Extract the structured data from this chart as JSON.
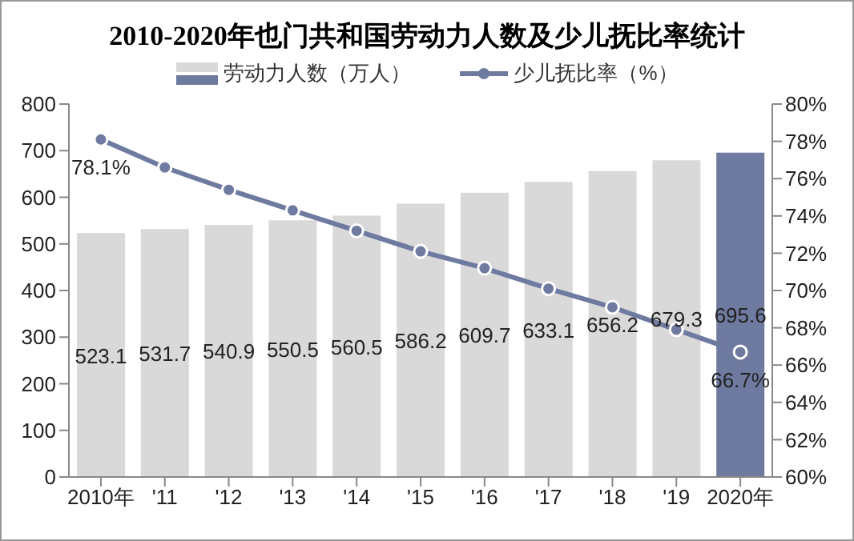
{
  "chart_data": {
    "type": "bar",
    "title": "2010-2020年也门共和国劳动力人数及少儿抚比率统计",
    "categories": [
      "2010年",
      "'11",
      "'12",
      "'13",
      "'14",
      "'15",
      "'16",
      "'17",
      "'18",
      "'19",
      "2020年"
    ],
    "series": [
      {
        "name": "劳动力人数（万人）",
        "colors": [
          "#d9d9d9",
          "#d9d9d9",
          "#d9d9d9",
          "#d9d9d9",
          "#d9d9d9",
          "#d9d9d9",
          "#d9d9d9",
          "#d9d9d9",
          "#d9d9d9",
          "#d9d9d9",
          "#6f7aa0"
        ],
        "color": "#d9d9d9",
        "values": [
          523.1,
          531.7,
          540.9,
          550.5,
          560.5,
          586.2,
          609.7,
          633.1,
          656.2,
          679.3,
          695.6
        ],
        "value_labels": [
          "523.1",
          "531.7",
          "540.9",
          "550.5",
          "560.5",
          "586.2",
          "609.7",
          "633.1",
          "656.2",
          "679.3",
          "695.6"
        ]
      },
      {
        "name": "少儿抚比率（%）",
        "type": "line",
        "axis": "y2",
        "color": "#6f7aa0",
        "marker": "circle",
        "values": [
          78.1,
          76.6,
          75.4,
          74.3,
          73.2,
          72.1,
          71.2,
          70.1,
          69.1,
          67.9,
          66.7
        ],
        "value_labels": [
          "78.1%",
          null,
          null,
          null,
          null,
          null,
          null,
          null,
          null,
          null,
          "66.7%"
        ]
      }
    ],
    "ylim": [
      0,
      800
    ],
    "yticks": [
      0,
      100,
      200,
      300,
      400,
      500,
      600,
      700,
      800
    ],
    "y2lim": [
      60,
      80
    ],
    "y2ticks": [
      {
        "value": 60,
        "label": "60%"
      },
      {
        "value": 62,
        "label": "62%"
      },
      {
        "value": 64,
        "label": "64%"
      },
      {
        "value": 66,
        "label": "66%"
      },
      {
        "value": 68,
        "label": "68%"
      },
      {
        "value": 70,
        "label": "70%"
      },
      {
        "value": 72,
        "label": "72%"
      },
      {
        "value": 74,
        "label": "74%"
      },
      {
        "value": 76,
        "label": "76%"
      },
      {
        "value": 78,
        "label": "78%"
      },
      {
        "value": 80,
        "label": "80%"
      }
    ],
    "legend": "top"
  }
}
